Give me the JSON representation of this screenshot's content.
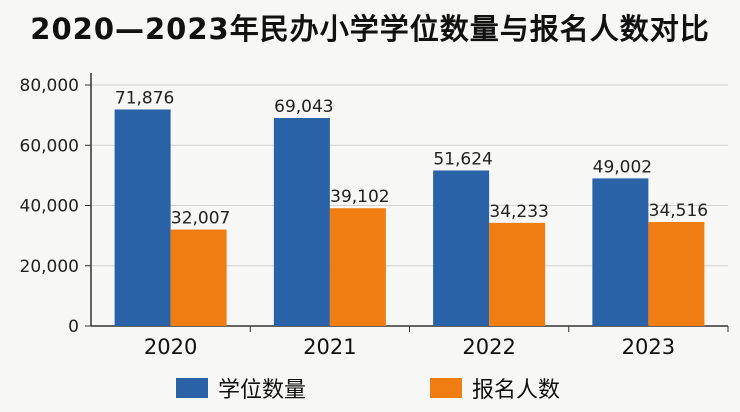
{
  "chart_data": {
    "type": "bar",
    "title": "2020—2023年民办小学学位数量与报名人数对比",
    "categories": [
      "2020",
      "2021",
      "2022",
      "2023"
    ],
    "series": [
      {
        "name": "学位数量",
        "values": [
          71876,
          69043,
          51624,
          49002
        ],
        "labels": [
          "71,876",
          "69,043",
          "51,624",
          "49,002"
        ],
        "color": "#2a62a8"
      },
      {
        "name": "报名人数",
        "values": [
          32007,
          39102,
          34233,
          34516
        ],
        "labels": [
          "32,007",
          "39,102",
          "34,233",
          "34,516"
        ],
        "color": "#ef7d12"
      }
    ],
    "ylim": [
      0,
      80000
    ],
    "yticks": [
      0,
      20000,
      40000,
      60000,
      80000
    ],
    "ytick_labels": [
      "0",
      "20,000",
      "40,000",
      "60,000",
      "80,000"
    ],
    "xlabel": "",
    "ylabel": "",
    "grid": true,
    "legend": "bottom"
  }
}
